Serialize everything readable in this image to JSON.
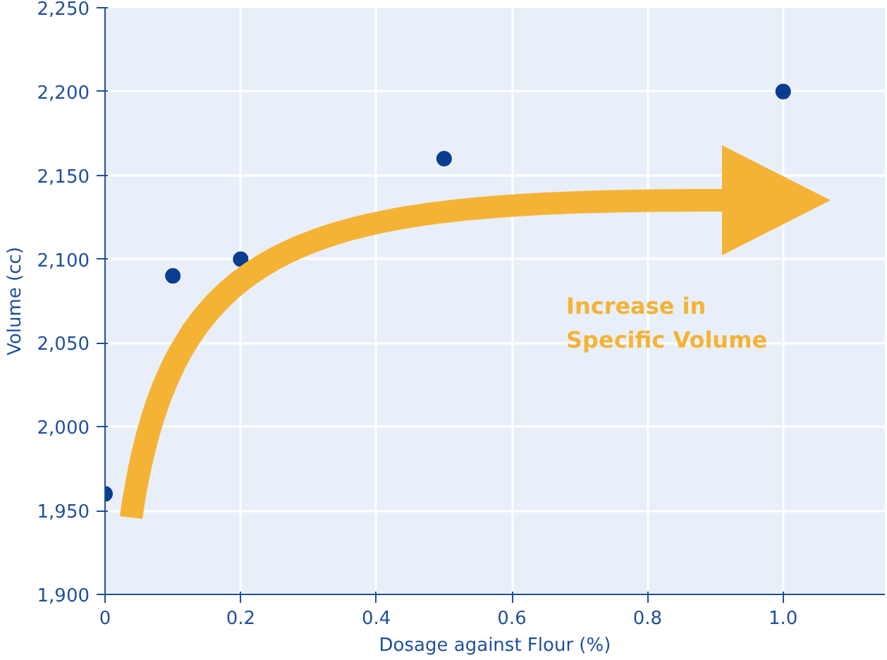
{
  "chart_data": {
    "type": "scatter",
    "xlabel": "Dosage against Flour (%)",
    "ylabel": "Volume (cc)",
    "x": [
      0,
      0.1,
      0.2,
      0.5,
      1.0
    ],
    "series": [
      {
        "color": "#0a3d8f",
        "values": [
          1960,
          2090,
          2100,
          2160,
          2200
        ]
      }
    ],
    "xlim": [
      0,
      1.15
    ],
    "ylim": [
      1900,
      2250
    ],
    "xticks": [
      0,
      0.2,
      0.4,
      0.6,
      0.8,
      {
        "value": 1.0,
        "label": "1.0"
      }
    ],
    "yticks": [
      {
        "value": 1900,
        "label": "1,900"
      },
      {
        "value": 1950,
        "label": "1,950"
      },
      {
        "value": 2000,
        "label": "2,000"
      },
      {
        "value": 2050,
        "label": "2,050"
      },
      {
        "value": 2100,
        "label": "2,100"
      },
      {
        "value": 2150,
        "label": "2,150"
      },
      {
        "value": 2200,
        "label": "2,200"
      },
      {
        "value": 2250,
        "label": "2,250"
      }
    ],
    "grid": true,
    "marker": "circle",
    "annotations": [
      "Increase in\nSpecific Volume"
    ]
  }
}
